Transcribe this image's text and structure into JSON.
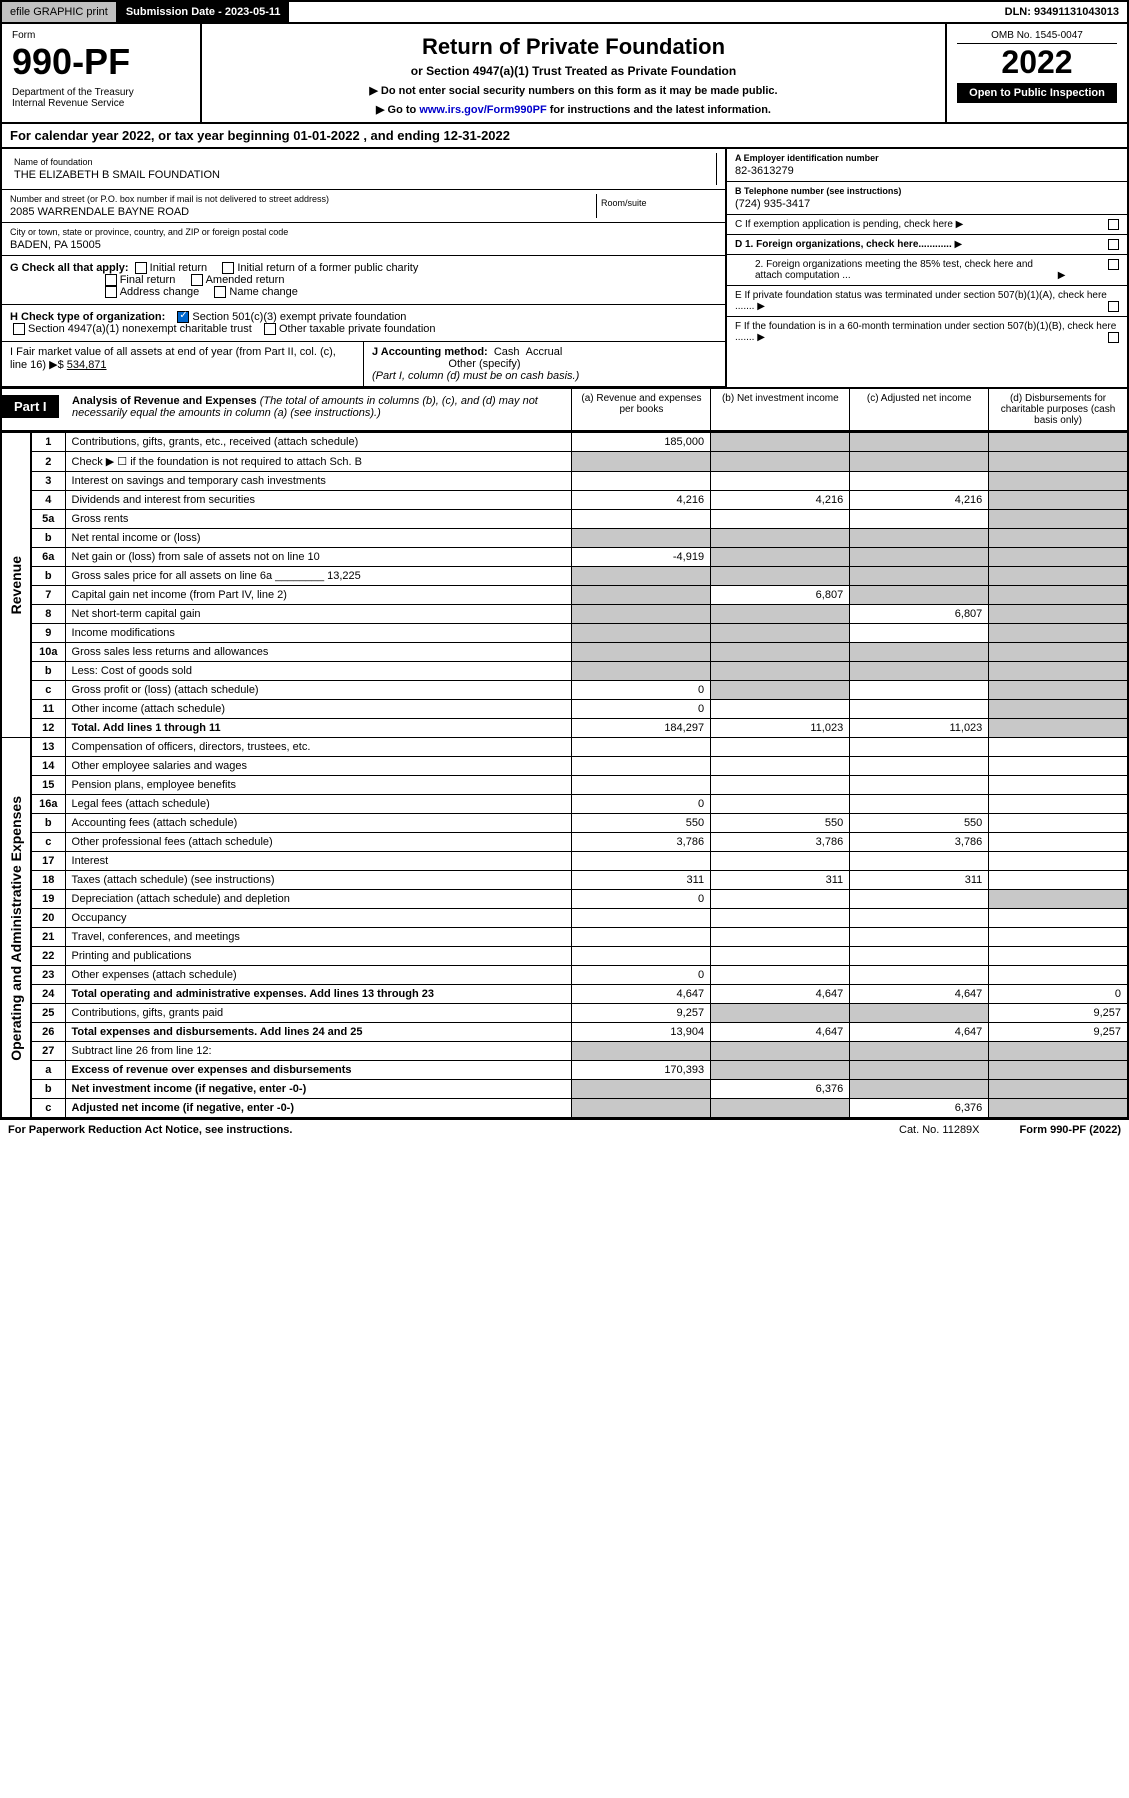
{
  "topbar": {
    "efile": "efile GRAPHIC print",
    "submission": "Submission Date - 2023-05-11",
    "dln": "DLN: 93491131043013"
  },
  "header": {
    "form_word": "Form",
    "form_num": "990-PF",
    "dept": "Department of the Treasury\nInternal Revenue Service",
    "title": "Return of Private Foundation",
    "subtitle": "or Section 4947(a)(1) Trust Treated as Private Foundation",
    "instr1": "▶ Do not enter social security numbers on this form as it may be made public.",
    "instr2": "▶ Go to www.irs.gov/Form990PF for instructions and the latest information.",
    "link_text": "www.irs.gov/Form990PF",
    "omb": "OMB No. 1545-0047",
    "year": "2022",
    "open": "Open to Public Inspection"
  },
  "cal_year": "For calendar year 2022, or tax year beginning 01-01-2022          , and ending 12-31-2022",
  "org": {
    "name_label": "Name of foundation",
    "name": "THE ELIZABETH B SMAIL FOUNDATION",
    "addr_label": "Number and street (or P.O. box number if mail is not delivered to street address)",
    "addr": "2085 WARRENDALE BAYNE ROAD",
    "room_label": "Room/suite",
    "city_label": "City or town, state or province, country, and ZIP or foreign postal code",
    "city": "BADEN, PA  15005",
    "ein_label": "A Employer identification number",
    "ein": "82-3613279",
    "tel_label": "B Telephone number (see instructions)",
    "tel": "(724) 935-3417",
    "c_label": "C If exemption application is pending, check here",
    "d1": "D 1. Foreign organizations, check here............",
    "d2": "2. Foreign organizations meeting the 85% test, check here and attach computation ...",
    "e": "E  If private foundation status was terminated under section 507(b)(1)(A), check here .......",
    "f": "F  If the foundation is in a 60-month termination under section 507(b)(1)(B), check here .......",
    "g": "G Check all that apply:",
    "g_opts": [
      "Initial return",
      "Initial return of a former public charity",
      "Final return",
      "Amended return",
      "Address change",
      "Name change"
    ],
    "h": "H Check type of organization:",
    "h_opts": [
      "Section 501(c)(3) exempt private foundation",
      "Section 4947(a)(1) nonexempt charitable trust",
      "Other taxable private foundation"
    ],
    "i": "I Fair market value of all assets at end of year (from Part II, col. (c), line 16) ▶$",
    "i_val": "534,871",
    "j": "J Accounting method:",
    "j_opts": [
      "Cash",
      "Accrual",
      "Other (specify)"
    ],
    "j_note": "(Part I, column (d) must be on cash basis.)"
  },
  "part1": {
    "label": "Part I",
    "title": "Analysis of Revenue and Expenses",
    "title_note": "(The total of amounts in columns (b), (c), and (d) may not necessarily equal the amounts in column (a) (see instructions).)",
    "col_a": "(a)  Revenue and expenses per books",
    "col_b": "(b)  Net investment income",
    "col_c": "(c)  Adjusted net income",
    "col_d": "(d)  Disbursements for charitable purposes (cash basis only)"
  },
  "side_labels": {
    "revenue": "Revenue",
    "expenses": "Operating and Administrative Expenses"
  },
  "rows": [
    {
      "ln": "1",
      "label": "Contributions, gifts, grants, etc., received (attach schedule)",
      "a": "185,000",
      "b": "",
      "c": "",
      "d": "",
      "grey": [
        "b",
        "c",
        "d"
      ]
    },
    {
      "ln": "2",
      "label": "Check ▶ ☐ if the foundation is not required to attach Sch. B",
      "a": "",
      "b": "",
      "c": "",
      "d": "",
      "grey": [
        "a",
        "b",
        "c",
        "d"
      ]
    },
    {
      "ln": "3",
      "label": "Interest on savings and temporary cash investments",
      "a": "",
      "b": "",
      "c": "",
      "d": "",
      "grey": [
        "d"
      ]
    },
    {
      "ln": "4",
      "label": "Dividends and interest from securities",
      "a": "4,216",
      "b": "4,216",
      "c": "4,216",
      "d": "",
      "grey": [
        "d"
      ]
    },
    {
      "ln": "5a",
      "label": "Gross rents",
      "a": "",
      "b": "",
      "c": "",
      "d": "",
      "grey": [
        "d"
      ]
    },
    {
      "ln": "b",
      "label": "Net rental income or (loss)",
      "a": "",
      "b": "",
      "c": "",
      "d": "",
      "grey": [
        "a",
        "b",
        "c",
        "d"
      ]
    },
    {
      "ln": "6a",
      "label": "Net gain or (loss) from sale of assets not on line 10",
      "a": "-4,919",
      "b": "",
      "c": "",
      "d": "",
      "grey": [
        "b",
        "c",
        "d"
      ]
    },
    {
      "ln": "b",
      "label": "Gross sales price for all assets on line 6a ________ 13,225",
      "a": "",
      "b": "",
      "c": "",
      "d": "",
      "grey": [
        "a",
        "b",
        "c",
        "d"
      ]
    },
    {
      "ln": "7",
      "label": "Capital gain net income (from Part IV, line 2)",
      "a": "",
      "b": "6,807",
      "c": "",
      "d": "",
      "grey": [
        "a",
        "c",
        "d"
      ]
    },
    {
      "ln": "8",
      "label": "Net short-term capital gain",
      "a": "",
      "b": "",
      "c": "6,807",
      "d": "",
      "grey": [
        "a",
        "b",
        "d"
      ]
    },
    {
      "ln": "9",
      "label": "Income modifications",
      "a": "",
      "b": "",
      "c": "",
      "d": "",
      "grey": [
        "a",
        "b",
        "d"
      ]
    },
    {
      "ln": "10a",
      "label": "Gross sales less returns and allowances",
      "a": "",
      "b": "",
      "c": "",
      "d": "",
      "grey": [
        "a",
        "b",
        "c",
        "d"
      ]
    },
    {
      "ln": "b",
      "label": "Less: Cost of goods sold",
      "a": "",
      "b": "",
      "c": "",
      "d": "",
      "grey": [
        "a",
        "b",
        "c",
        "d"
      ]
    },
    {
      "ln": "c",
      "label": "Gross profit or (loss) (attach schedule)",
      "a": "0",
      "b": "",
      "c": "",
      "d": "",
      "grey": [
        "b",
        "d"
      ]
    },
    {
      "ln": "11",
      "label": "Other income (attach schedule)",
      "a": "0",
      "b": "",
      "c": "",
      "d": "",
      "grey": [
        "d"
      ]
    },
    {
      "ln": "12",
      "label": "Total. Add lines 1 through 11",
      "a": "184,297",
      "b": "11,023",
      "c": "11,023",
      "d": "",
      "bold": true,
      "grey": [
        "d"
      ]
    },
    {
      "ln": "13",
      "label": "Compensation of officers, directors, trustees, etc.",
      "a": "",
      "b": "",
      "c": "",
      "d": ""
    },
    {
      "ln": "14",
      "label": "Other employee salaries and wages",
      "a": "",
      "b": "",
      "c": "",
      "d": ""
    },
    {
      "ln": "15",
      "label": "Pension plans, employee benefits",
      "a": "",
      "b": "",
      "c": "",
      "d": ""
    },
    {
      "ln": "16a",
      "label": "Legal fees (attach schedule)",
      "a": "0",
      "b": "",
      "c": "",
      "d": ""
    },
    {
      "ln": "b",
      "label": "Accounting fees (attach schedule)",
      "a": "550",
      "b": "550",
      "c": "550",
      "d": ""
    },
    {
      "ln": "c",
      "label": "Other professional fees (attach schedule)",
      "a": "3,786",
      "b": "3,786",
      "c": "3,786",
      "d": ""
    },
    {
      "ln": "17",
      "label": "Interest",
      "a": "",
      "b": "",
      "c": "",
      "d": ""
    },
    {
      "ln": "18",
      "label": "Taxes (attach schedule) (see instructions)",
      "a": "311",
      "b": "311",
      "c": "311",
      "d": ""
    },
    {
      "ln": "19",
      "label": "Depreciation (attach schedule) and depletion",
      "a": "0",
      "b": "",
      "c": "",
      "d": "",
      "grey": [
        "d"
      ]
    },
    {
      "ln": "20",
      "label": "Occupancy",
      "a": "",
      "b": "",
      "c": "",
      "d": ""
    },
    {
      "ln": "21",
      "label": "Travel, conferences, and meetings",
      "a": "",
      "b": "",
      "c": "",
      "d": ""
    },
    {
      "ln": "22",
      "label": "Printing and publications",
      "a": "",
      "b": "",
      "c": "",
      "d": ""
    },
    {
      "ln": "23",
      "label": "Other expenses (attach schedule)",
      "a": "0",
      "b": "",
      "c": "",
      "d": ""
    },
    {
      "ln": "24",
      "label": "Total operating and administrative expenses. Add lines 13 through 23",
      "a": "4,647",
      "b": "4,647",
      "c": "4,647",
      "d": "0",
      "bold": true
    },
    {
      "ln": "25",
      "label": "Contributions, gifts, grants paid",
      "a": "9,257",
      "b": "",
      "c": "",
      "d": "9,257",
      "grey": [
        "b",
        "c"
      ]
    },
    {
      "ln": "26",
      "label": "Total expenses and disbursements. Add lines 24 and 25",
      "a": "13,904",
      "b": "4,647",
      "c": "4,647",
      "d": "9,257",
      "bold": true
    },
    {
      "ln": "27",
      "label": "Subtract line 26 from line 12:",
      "a": "",
      "b": "",
      "c": "",
      "d": "",
      "grey": [
        "a",
        "b",
        "c",
        "d"
      ]
    },
    {
      "ln": "a",
      "label": "Excess of revenue over expenses and disbursements",
      "a": "170,393",
      "b": "",
      "c": "",
      "d": "",
      "bold": true,
      "grey": [
        "b",
        "c",
        "d"
      ]
    },
    {
      "ln": "b",
      "label": "Net investment income (if negative, enter -0-)",
      "a": "",
      "b": "6,376",
      "c": "",
      "d": "",
      "bold": true,
      "grey": [
        "a",
        "c",
        "d"
      ]
    },
    {
      "ln": "c",
      "label": "Adjusted net income (if negative, enter -0-)",
      "a": "",
      "b": "",
      "c": "6,376",
      "d": "",
      "bold": true,
      "grey": [
        "a",
        "b",
        "d"
      ]
    }
  ],
  "footer": {
    "pra": "For Paperwork Reduction Act Notice, see instructions.",
    "cat": "Cat. No. 11289X",
    "formref": "Form 990-PF (2022)"
  }
}
